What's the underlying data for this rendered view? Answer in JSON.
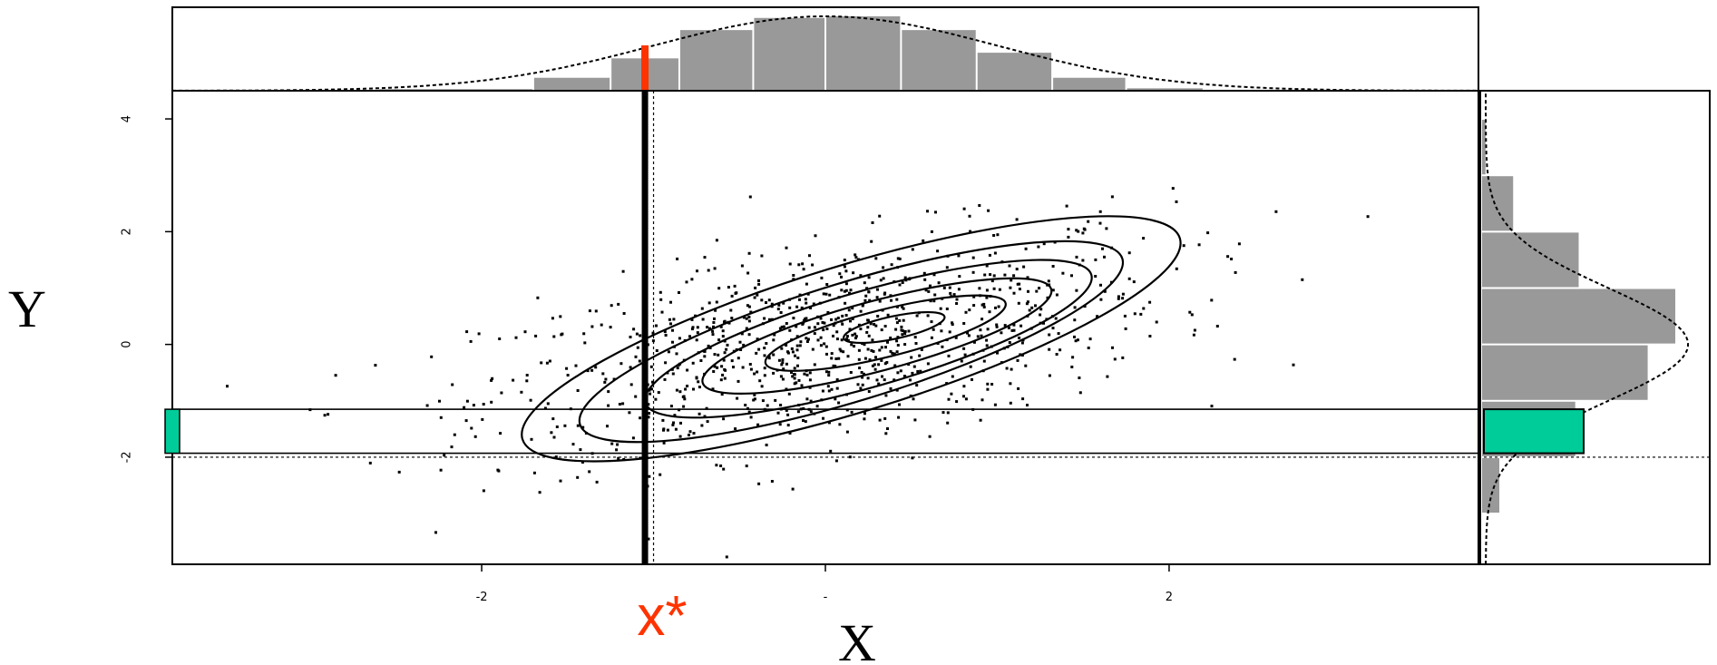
{
  "chart_data": {
    "type": "scatter",
    "title": "",
    "xlabel": "X",
    "ylabel": "Y",
    "xlim": [
      -3.8,
      3.8
    ],
    "ylim": [
      -3.9,
      4.5
    ],
    "x_ticks": [
      {
        "value": -2,
        "label": "-2"
      },
      {
        "value": 0,
        "label": "-"
      },
      {
        "value": 2,
        "label": "2"
      }
    ],
    "y_ticks": [
      {
        "value": 4,
        "label": "4"
      },
      {
        "value": 2,
        "label": "2"
      },
      {
        "value": 0,
        "label": "0"
      },
      {
        "value": -2,
        "label": "-2"
      }
    ],
    "annotation": {
      "label": "x*",
      "x": -1.05,
      "color": "#ff3300"
    },
    "conditional_band": {
      "y_low": -1.93,
      "y_high": -1.15,
      "color": "#00cc99"
    },
    "reference_lines": {
      "x": -1.0,
      "y": -2.0
    },
    "marginal_x": {
      "bins": [
        -2.6,
        -1.7,
        -1.25,
        -0.85,
        -0.42,
        0.0,
        0.44,
        0.88,
        1.32,
        1.75,
        2.2,
        2.7
      ],
      "counts": [
        2,
        16,
        40,
        75,
        90,
        92,
        75,
        47,
        16,
        3,
        1
      ],
      "highlight_value": -1.05
    },
    "marginal_y": {
      "bins": [
        -3.0,
        -2.0,
        -1.0,
        0.0,
        1.0,
        2.0,
        3.0,
        4.0
      ],
      "counts": [
        10,
        54,
        96,
        112,
        56,
        18,
        2
      ]
    },
    "contour_levels": [
      {
        "cx": 0.15,
        "cy": 0.1,
        "rx": 2.0,
        "ry": 1.3,
        "angle": 17
      },
      {
        "cx": 0.15,
        "cy": 0.05,
        "rx": 1.65,
        "ry": 1.05,
        "angle": 17
      },
      {
        "cx": 0.25,
        "cy": 0.1,
        "rx": 1.35,
        "ry": 0.85,
        "angle": 16
      },
      {
        "cx": 0.3,
        "cy": 0.15,
        "rx": 1.05,
        "ry": 0.62,
        "angle": 15
      },
      {
        "cx": 0.35,
        "cy": 0.2,
        "rx": 0.72,
        "ry": 0.42,
        "angle": 14
      },
      {
        "cx": 0.4,
        "cy": 0.3,
        "rx": 0.3,
        "ry": 0.2,
        "angle": 12
      }
    ],
    "scatter": {
      "n": 1000,
      "rho": 0.5,
      "mean": [
        0,
        0
      ],
      "sd": [
        1,
        1
      ]
    },
    "colors": {
      "bars": "#999999",
      "highlight": "#ff3300",
      "band": "#00cc99"
    }
  }
}
